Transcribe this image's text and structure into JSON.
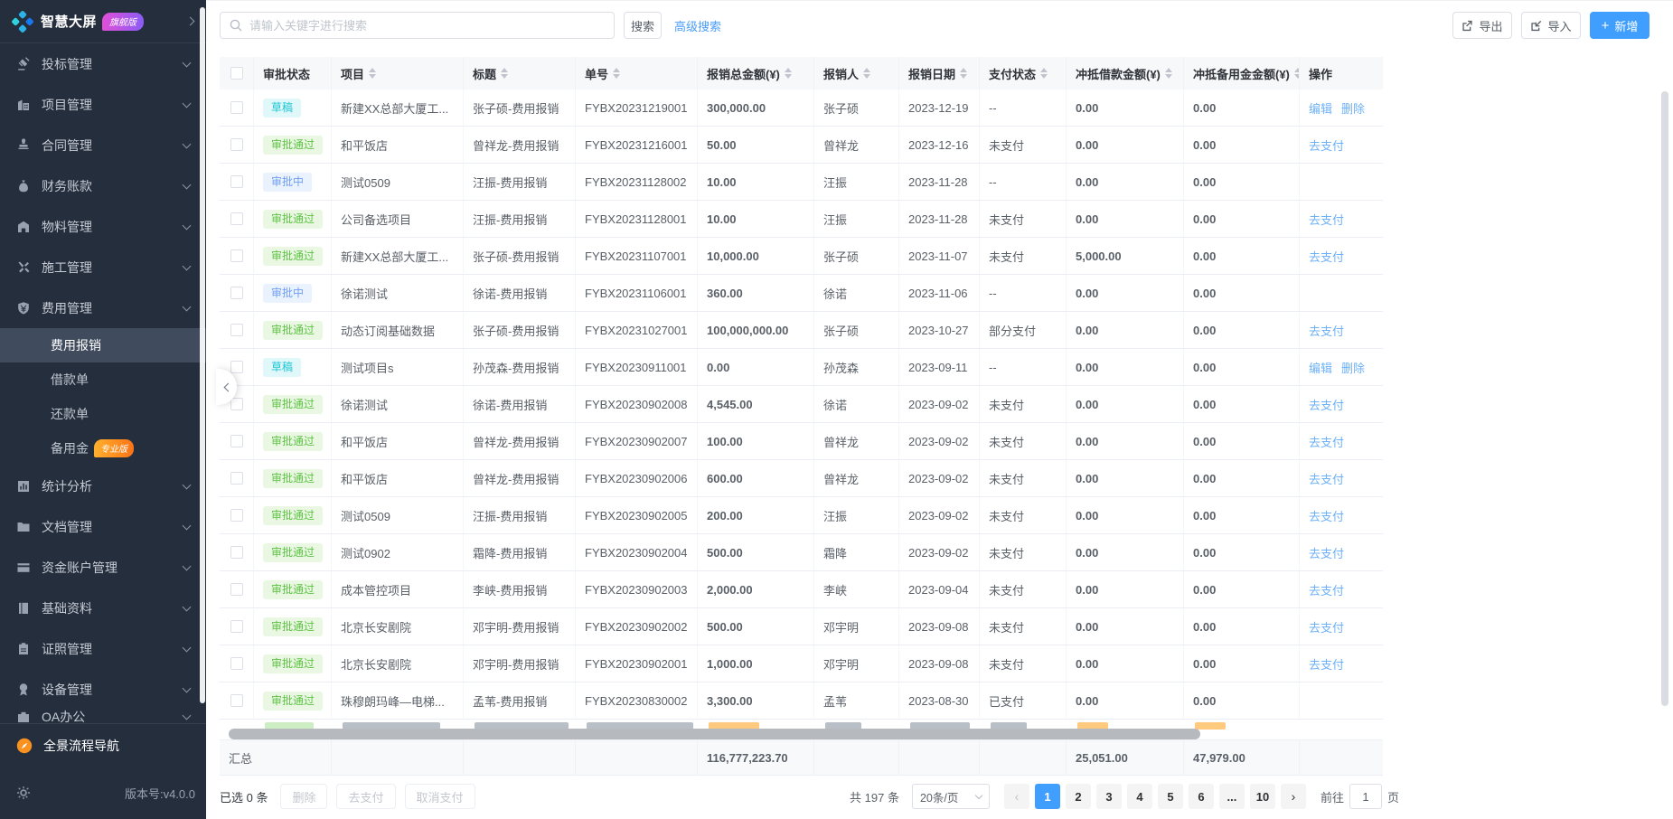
{
  "colors": {
    "accent": "#409eff",
    "amount_orange": "#fd9200",
    "sidebar_bg": "#252e3d",
    "status_draft": "#1fc6d4",
    "status_approved": "#5ec244",
    "status_reviewing": "#6f9ef5"
  },
  "sidebar": {
    "brand": {
      "label": "智慧大屏",
      "badge": "旗舰版"
    },
    "items": [
      {
        "key": "bid-management",
        "label": "投标管理",
        "icon": "gavel-icon"
      },
      {
        "key": "project-management",
        "label": "项目管理",
        "icon": "building-icon"
      },
      {
        "key": "contract-management",
        "label": "合同管理",
        "icon": "stamp-icon"
      },
      {
        "key": "finance-accounts",
        "label": "财务账款",
        "icon": "moneybag-icon"
      },
      {
        "key": "material-management",
        "label": "物料管理",
        "icon": "warehouse-icon"
      },
      {
        "key": "construction-management",
        "label": "施工管理",
        "icon": "tools-icon"
      },
      {
        "key": "expense-management",
        "label": "费用管理",
        "icon": "shield-icon",
        "expanded": true,
        "children": [
          {
            "key": "expense-reimbursement",
            "label": "费用报销",
            "active": true
          },
          {
            "key": "loan-order",
            "label": "借款单"
          },
          {
            "key": "repayment-order",
            "label": "还款单"
          },
          {
            "key": "reserve-fund",
            "label": "备用金",
            "badge": "专业版"
          }
        ]
      },
      {
        "key": "statistics-analysis",
        "label": "统计分析",
        "icon": "chart-icon"
      },
      {
        "key": "document-management",
        "label": "文档管理",
        "icon": "folder-icon"
      },
      {
        "key": "fund-account-management",
        "label": "资金账户管理",
        "icon": "card-icon"
      },
      {
        "key": "basic-data",
        "label": "基础资料",
        "icon": "book-icon"
      },
      {
        "key": "certificate-management",
        "label": "证照管理",
        "icon": "clipboard-icon"
      },
      {
        "key": "equipment-management",
        "label": "设备管理",
        "icon": "medal-icon"
      },
      {
        "key": "oa-office",
        "label": "OA办公",
        "icon": "briefcase-icon",
        "clipped": true
      }
    ],
    "bottom_nav": {
      "label": "全景流程导航"
    },
    "version_label": "版本号:v4.0.0"
  },
  "toolbar": {
    "search_placeholder": "请输入关键字进行搜索",
    "search_button": "搜索",
    "advanced_search": "高级搜索",
    "export_button": "导出",
    "import_button": "导入",
    "add_button": "新增"
  },
  "table": {
    "columns": [
      {
        "label": "审批状态",
        "sortable": false
      },
      {
        "label": "项目",
        "sortable": true
      },
      {
        "label": "标题",
        "sortable": true
      },
      {
        "label": "单号",
        "sortable": true
      },
      {
        "label": "报销总金额(¥)",
        "sortable": true
      },
      {
        "label": "报销人",
        "sortable": true
      },
      {
        "label": "报销日期",
        "sortable": true
      },
      {
        "label": "支付状态",
        "sortable": true
      },
      {
        "label": "冲抵借款金额(¥)",
        "sortable": true
      },
      {
        "label": "冲抵备用金金额(¥)",
        "sortable": true
      },
      {
        "label": "操作",
        "sortable": false
      }
    ],
    "rows": [
      {
        "status": "草稿",
        "status_type": "draft",
        "project": "新建XX总部大厦工...",
        "title": "张子硕-费用报销",
        "order_no": "FYBX20231219001",
        "amount": "300,000.00",
        "person": "张子硕",
        "date": "2023-12-19",
        "pay_status": "--",
        "loan_amount": "0.00",
        "reserve_amount": "0.00",
        "actions": [
          "编辑",
          "删除"
        ]
      },
      {
        "status": "审批通过",
        "status_type": "approved",
        "project": "和平饭店",
        "title": "曾祥龙-费用报销",
        "order_no": "FYBX20231216001",
        "amount": "50.00",
        "person": "曾祥龙",
        "date": "2023-12-16",
        "pay_status": "未支付",
        "loan_amount": "0.00",
        "reserve_amount": "0.00",
        "actions": [
          "去支付"
        ]
      },
      {
        "status": "审批中",
        "status_type": "reviewing",
        "project": "测试0509",
        "title": "汪振-费用报销",
        "order_no": "FYBX20231128002",
        "amount": "10.00",
        "person": "汪振",
        "date": "2023-11-28",
        "pay_status": "--",
        "loan_amount": "0.00",
        "reserve_amount": "0.00",
        "actions": []
      },
      {
        "status": "审批通过",
        "status_type": "approved",
        "project": "公司备选项目",
        "title": "汪振-费用报销",
        "order_no": "FYBX20231128001",
        "amount": "10.00",
        "person": "汪振",
        "date": "2023-11-28",
        "pay_status": "未支付",
        "loan_amount": "0.00",
        "reserve_amount": "0.00",
        "actions": [
          "去支付"
        ]
      },
      {
        "status": "审批通过",
        "status_type": "approved",
        "project": "新建XX总部大厦工...",
        "title": "张子硕-费用报销",
        "order_no": "FYBX20231107001",
        "amount": "10,000.00",
        "person": "张子硕",
        "date": "2023-11-07",
        "pay_status": "未支付",
        "loan_amount": "5,000.00",
        "reserve_amount": "0.00",
        "actions": [
          "去支付"
        ]
      },
      {
        "status": "审批中",
        "status_type": "reviewing",
        "project": "徐诺测试",
        "title": "徐诺-费用报销",
        "order_no": "FYBX20231106001",
        "amount": "360.00",
        "person": "徐诺",
        "date": "2023-11-06",
        "pay_status": "--",
        "loan_amount": "0.00",
        "reserve_amount": "0.00",
        "actions": []
      },
      {
        "status": "审批通过",
        "status_type": "approved",
        "project": "动态订阅基础数据",
        "title": "张子硕-费用报销",
        "order_no": "FYBX20231027001",
        "amount": "100,000,000.00",
        "person": "张子硕",
        "date": "2023-10-27",
        "pay_status": "部分支付",
        "loan_amount": "0.00",
        "reserve_amount": "0.00",
        "actions": [
          "去支付"
        ]
      },
      {
        "status": "草稿",
        "status_type": "draft",
        "project": "测试项目s",
        "title": "孙茂森-费用报销",
        "order_no": "FYBX20230911001",
        "amount": "0.00",
        "person": "孙茂森",
        "date": "2023-09-11",
        "pay_status": "--",
        "loan_amount": "0.00",
        "reserve_amount": "0.00",
        "actions": [
          "编辑",
          "删除"
        ]
      },
      {
        "status": "审批通过",
        "status_type": "approved",
        "project": "徐诺测试",
        "title": "徐诺-费用报销",
        "order_no": "FYBX20230902008",
        "amount": "4,545.00",
        "person": "徐诺",
        "date": "2023-09-02",
        "pay_status": "未支付",
        "loan_amount": "0.00",
        "reserve_amount": "0.00",
        "actions": [
          "去支付"
        ]
      },
      {
        "status": "审批通过",
        "status_type": "approved",
        "project": "和平饭店",
        "title": "曾祥龙-费用报销",
        "order_no": "FYBX20230902007",
        "amount": "100.00",
        "person": "曾祥龙",
        "date": "2023-09-02",
        "pay_status": "未支付",
        "loan_amount": "0.00",
        "reserve_amount": "0.00",
        "actions": [
          "去支付"
        ]
      },
      {
        "status": "审批通过",
        "status_type": "approved",
        "project": "和平饭店",
        "title": "曾祥龙-费用报销",
        "order_no": "FYBX20230902006",
        "amount": "600.00",
        "person": "曾祥龙",
        "date": "2023-09-02",
        "pay_status": "未支付",
        "loan_amount": "0.00",
        "reserve_amount": "0.00",
        "actions": [
          "去支付"
        ]
      },
      {
        "status": "审批通过",
        "status_type": "approved",
        "project": "测试0509",
        "title": "汪振-费用报销",
        "order_no": "FYBX20230902005",
        "amount": "200.00",
        "person": "汪振",
        "date": "2023-09-02",
        "pay_status": "未支付",
        "loan_amount": "0.00",
        "reserve_amount": "0.00",
        "actions": [
          "去支付"
        ]
      },
      {
        "status": "审批通过",
        "status_type": "approved",
        "project": "测试0902",
        "title": "霜降-费用报销",
        "order_no": "FYBX20230902004",
        "amount": "500.00",
        "person": "霜降",
        "date": "2023-09-02",
        "pay_status": "未支付",
        "loan_amount": "0.00",
        "reserve_amount": "0.00",
        "actions": [
          "去支付"
        ]
      },
      {
        "status": "审批通过",
        "status_type": "approved",
        "project": "成本管控项目",
        "title": "李峡-费用报销",
        "order_no": "FYBX20230902003",
        "amount": "2,000.00",
        "person": "李峡",
        "date": "2023-09-04",
        "pay_status": "未支付",
        "loan_amount": "0.00",
        "reserve_amount": "0.00",
        "actions": [
          "去支付"
        ]
      },
      {
        "status": "审批通过",
        "status_type": "approved",
        "project": "北京长安剧院",
        "title": "邓宇明-费用报销",
        "order_no": "FYBX20230902002",
        "amount": "500.00",
        "person": "邓宇明",
        "date": "2023-09-08",
        "pay_status": "未支付",
        "loan_amount": "0.00",
        "reserve_amount": "0.00",
        "actions": [
          "去支付"
        ]
      },
      {
        "status": "审批通过",
        "status_type": "approved",
        "project": "北京长安剧院",
        "title": "邓宇明-费用报销",
        "order_no": "FYBX20230902001",
        "amount": "1,000.00",
        "person": "邓宇明",
        "date": "2023-09-08",
        "pay_status": "未支付",
        "loan_amount": "0.00",
        "reserve_amount": "0.00",
        "actions": [
          "去支付"
        ]
      },
      {
        "status": "审批通过",
        "status_type": "approved",
        "project": "珠穆朗玛峰—电梯...",
        "title": "孟苇-费用报销",
        "order_no": "FYBX20230830002",
        "amount": "3,300.00",
        "person": "孟苇",
        "date": "2023-08-30",
        "pay_status": "已支付",
        "loan_amount": "0.00",
        "reserve_amount": "0.00",
        "actions": []
      }
    ],
    "summary": {
      "label": "汇总",
      "total_amount": "116,777,223.70",
      "total_loan": "25,051.00",
      "total_reserve": "47,979.00"
    }
  },
  "footer": {
    "selected_label": "已选 0 条",
    "batch_buttons": [
      {
        "key": "delete",
        "label": "删除"
      },
      {
        "key": "pay",
        "label": "去支付"
      },
      {
        "key": "cancel-pay",
        "label": "取消支付"
      }
    ],
    "total_label": "共 197 条",
    "page_size": "20条/页",
    "pages": [
      "1",
      "2",
      "3",
      "4",
      "5",
      "6",
      "...",
      "10"
    ],
    "active_page": "1",
    "goto_label": "前往",
    "goto_value": "1",
    "goto_unit": "页"
  }
}
